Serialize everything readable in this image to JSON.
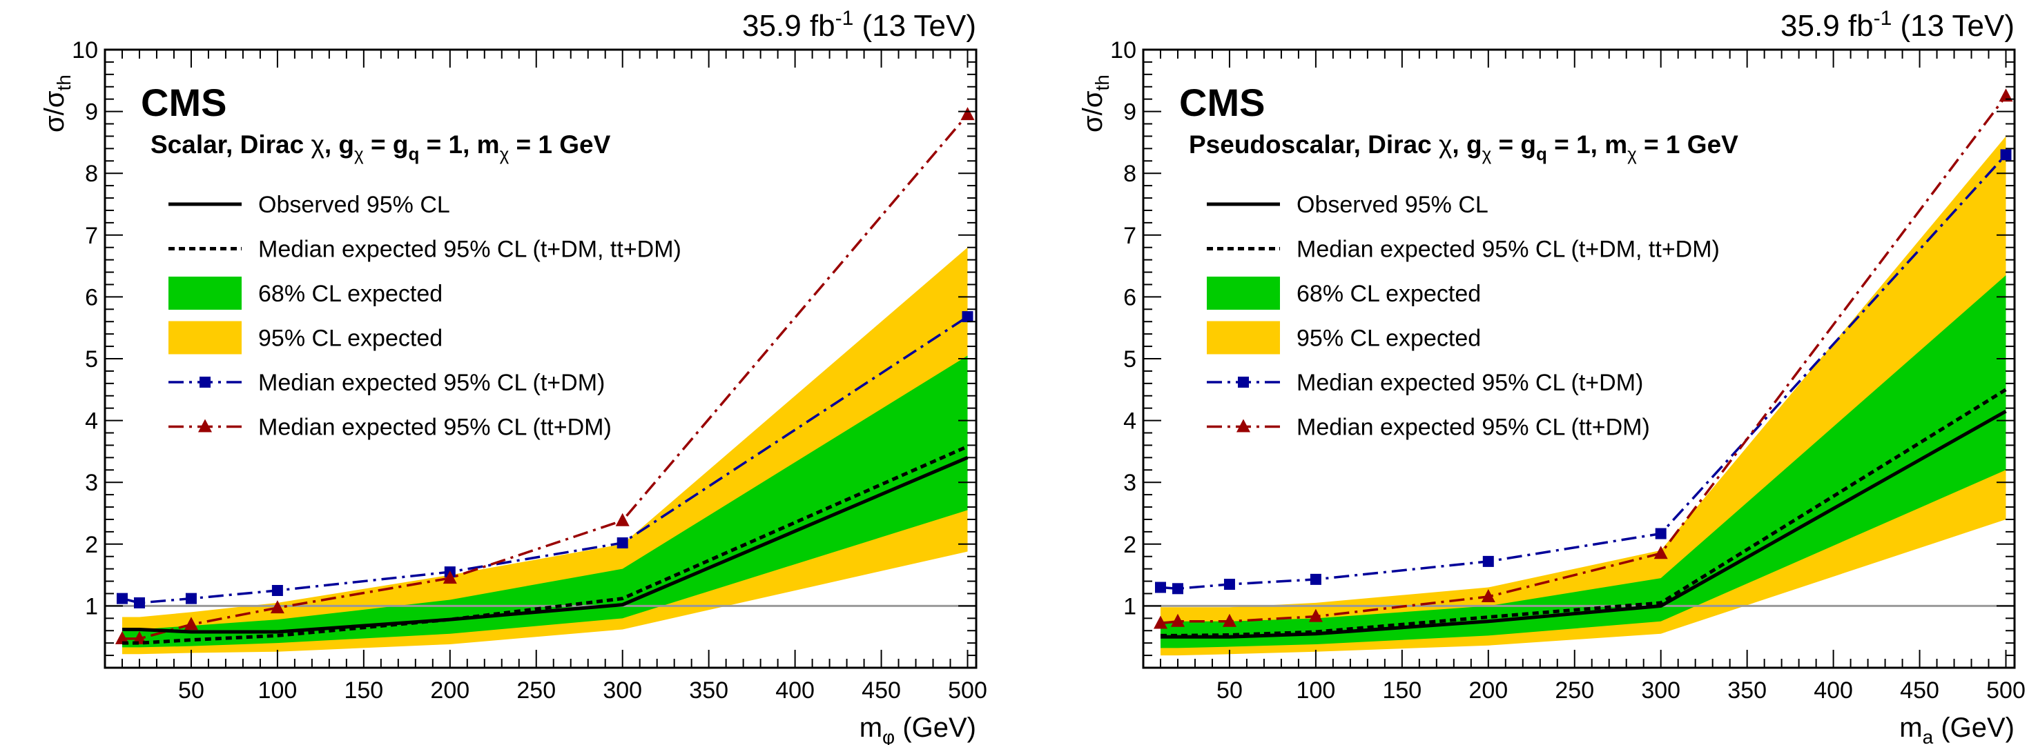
{
  "colors": {
    "band95": "#FFCC00",
    "band68": "#00CC00",
    "observed": "#000000",
    "expected": "#000000",
    "tdm": "#000099",
    "ttdm": "#990000",
    "unity": "#999999"
  },
  "chart_data": [
    {
      "type": "line",
      "lumi": "35.9 fb",
      "lumi_sup": "-1",
      "energy": "(13 TeV)",
      "experiment": "CMS",
      "title_parts": [
        "Scalar, Dirac ",
        "χ",
        ", g",
        "χ",
        " = g",
        "q",
        " = 1, m",
        "χ",
        " = 1 GeV"
      ],
      "xlabel_main": "m",
      "xlabel_sub": "φ",
      "xlabel_unit": " (GeV)",
      "ylabel_main": "σ/σ",
      "ylabel_sub": "th",
      "xlim": [
        0,
        505
      ],
      "ylim": [
        0,
        10
      ],
      "xticks": [
        50,
        100,
        150,
        200,
        250,
        300,
        350,
        400,
        450,
        500
      ],
      "yticks": [
        1,
        2,
        3,
        4,
        5,
        6,
        7,
        8,
        9,
        10
      ],
      "grid": false,
      "reference_line": 1,
      "legend_position": "top-left",
      "legend": [
        {
          "key": "observed",
          "label": "Observed 95% CL"
        },
        {
          "key": "expected",
          "label": "Median expected 95% CL (t+DM, tt+DM)"
        },
        {
          "key": "band68",
          "label": "68% CL expected"
        },
        {
          "key": "band95",
          "label": "95% CL expected"
        },
        {
          "key": "tdm",
          "label": "Median expected 95% CL (t+DM)"
        },
        {
          "key": "ttdm",
          "label": "Median expected 95% CL (tt+DM)"
        }
      ],
      "x": [
        10,
        20,
        50,
        100,
        200,
        300,
        500
      ],
      "band95": {
        "low": [
          0.22,
          0.22,
          0.24,
          0.26,
          0.38,
          0.62,
          1.88
        ],
        "high": [
          0.82,
          0.82,
          0.9,
          1.05,
          1.5,
          2.0,
          6.8
        ]
      },
      "band68": {
        "low": [
          0.33,
          0.33,
          0.35,
          0.4,
          0.55,
          0.8,
          2.55
        ],
        "high": [
          0.62,
          0.62,
          0.68,
          0.78,
          1.1,
          1.6,
          5.05
        ]
      },
      "observed": [
        0.62,
        0.62,
        0.58,
        0.58,
        0.78,
        1.02,
        3.4
      ],
      "expected": [
        0.4,
        0.4,
        0.45,
        0.52,
        0.78,
        1.12,
        3.58
      ],
      "tdm": [
        1.12,
        1.05,
        1.12,
        1.25,
        1.55,
        2.02,
        5.68
      ],
      "ttdm": [
        0.47,
        0.47,
        0.7,
        0.97,
        1.45,
        2.38,
        8.95
      ]
    },
    {
      "type": "line",
      "lumi": "35.9 fb",
      "lumi_sup": "-1",
      "energy": "(13 TeV)",
      "experiment": "CMS",
      "title_parts": [
        "Pseudoscalar, Dirac ",
        "χ",
        ", g",
        "χ",
        " = g",
        "q",
        " = 1, m",
        "χ",
        " = 1 GeV"
      ],
      "xlabel_main": "m",
      "xlabel_sub": "a",
      "xlabel_unit": " (GeV)",
      "ylabel_main": "σ/σ",
      "ylabel_sub": "th",
      "xlim": [
        0,
        505
      ],
      "ylim": [
        0,
        10
      ],
      "xticks": [
        50,
        100,
        150,
        200,
        250,
        300,
        350,
        400,
        450,
        500
      ],
      "yticks": [
        1,
        2,
        3,
        4,
        5,
        6,
        7,
        8,
        9,
        10
      ],
      "grid": false,
      "reference_line": 1,
      "legend_position": "top-left",
      "legend": [
        {
          "key": "observed",
          "label": "Observed 95% CL"
        },
        {
          "key": "expected",
          "label": "Median expected 95% CL (t+DM, tt+DM)"
        },
        {
          "key": "band68",
          "label": "68% CL expected"
        },
        {
          "key": "band95",
          "label": "95% CL expected"
        },
        {
          "key": "tdm",
          "label": "Median expected 95% CL (t+DM)"
        },
        {
          "key": "ttdm",
          "label": "Median expected 95% CL (tt+DM)"
        }
      ],
      "x": [
        10,
        20,
        50,
        100,
        200,
        300,
        500
      ],
      "band95": {
        "low": [
          0.2,
          0.2,
          0.22,
          0.26,
          0.36,
          0.55,
          2.4
        ],
        "high": [
          0.98,
          0.98,
          0.98,
          1.05,
          1.3,
          1.9,
          8.6
        ]
      },
      "band68": {
        "low": [
          0.32,
          0.32,
          0.34,
          0.38,
          0.52,
          0.75,
          3.2
        ],
        "high": [
          0.75,
          0.75,
          0.75,
          0.8,
          1.0,
          1.45,
          6.35
        ]
      },
      "observed": [
        0.5,
        0.5,
        0.5,
        0.55,
        0.75,
        1.0,
        4.15
      ],
      "expected": [
        0.52,
        0.52,
        0.53,
        0.58,
        0.82,
        1.05,
        4.5
      ],
      "tdm": [
        1.3,
        1.28,
        1.35,
        1.43,
        1.72,
        2.17,
        8.3
      ],
      "ttdm": [
        0.72,
        0.75,
        0.75,
        0.83,
        1.15,
        1.85,
        9.25
      ]
    }
  ]
}
